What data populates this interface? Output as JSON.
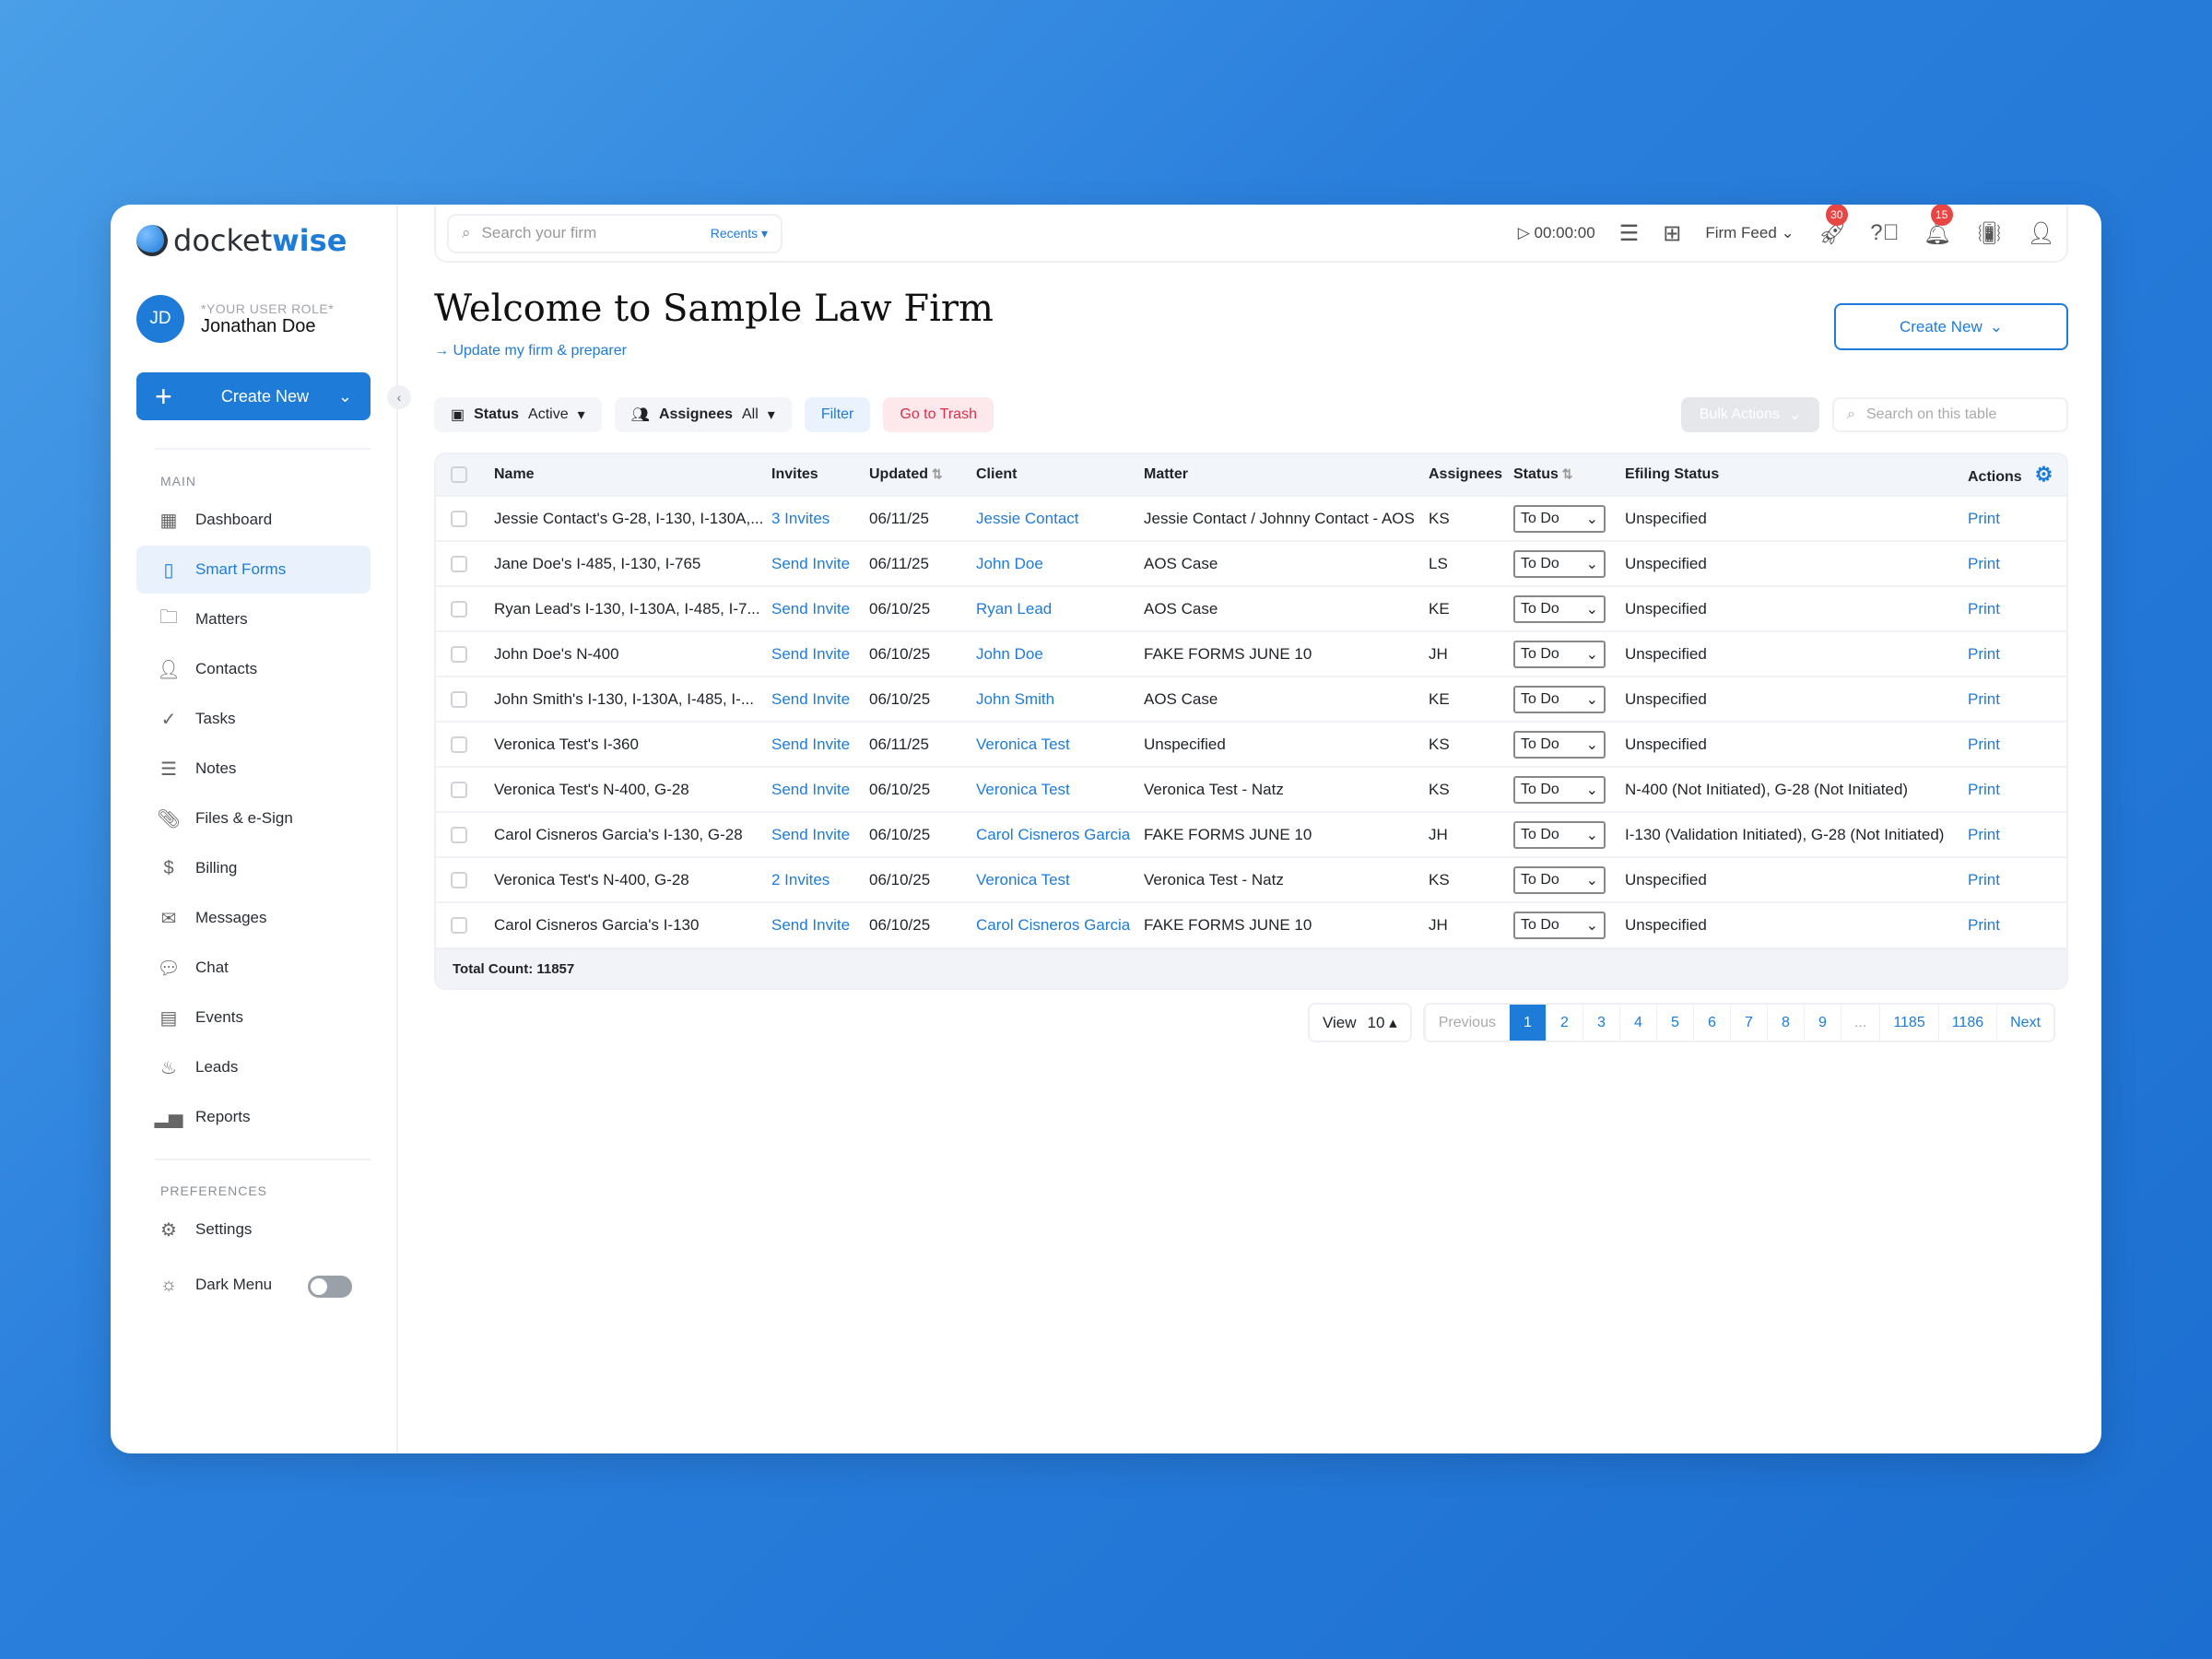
{
  "brand": {
    "logo_a": "docket",
    "logo_b": "wise",
    "accent": "#1e7bd8"
  },
  "user": {
    "initials": "JD",
    "role": "*YOUR USER ROLE*",
    "name": "Jonathan Doe"
  },
  "sidebar": {
    "create_label": "Create New",
    "main_label": "MAIN",
    "prefs_label": "PREFERENCES",
    "items": [
      {
        "label": "Dashboard",
        "icon": "grid-icon"
      },
      {
        "label": "Smart Forms",
        "icon": "form-icon",
        "active": true
      },
      {
        "label": "Matters",
        "icon": "folder-icon"
      },
      {
        "label": "Contacts",
        "icon": "user-icon"
      },
      {
        "label": "Tasks",
        "icon": "check-circle-icon"
      },
      {
        "label": "Notes",
        "icon": "notes-icon"
      },
      {
        "label": "Files & e-Sign",
        "icon": "paperclip-icon"
      },
      {
        "label": "Billing",
        "icon": "dollar-icon"
      },
      {
        "label": "Messages",
        "icon": "envelope-icon"
      },
      {
        "label": "Chat",
        "icon": "chat-icon"
      },
      {
        "label": "Events",
        "icon": "calendar-icon"
      },
      {
        "label": "Leads",
        "icon": "flame-icon"
      },
      {
        "label": "Reports",
        "icon": "bar-chart-icon"
      }
    ],
    "settings": "Settings",
    "dark_menu": "Dark Menu",
    "dark_menu_on": false
  },
  "topbar": {
    "search_placeholder": "Search your firm",
    "recents": "Recents ▾",
    "timer": "00:00:00",
    "firm_feed": "Firm Feed",
    "rocket_badge": "30",
    "bell_badge": "15"
  },
  "page": {
    "title": "Welcome to Sample Law Firm",
    "update_link": "→ Update my firm & preparer",
    "create_new": "Create New"
  },
  "filters": {
    "status_label": "Status",
    "status_value": "Active",
    "assignees_label": "Assignees",
    "assignees_value": "All",
    "filter": "Filter",
    "trash": "Go to Trash",
    "bulk": "Bulk Actions",
    "table_search_placeholder": "Search on this table"
  },
  "table": {
    "headers": [
      "Name",
      "Invites",
      "Updated",
      "Client",
      "Matter",
      "Assignees",
      "Status",
      "Efiling Status",
      "Actions"
    ],
    "rows": [
      [
        "Jessie Contact's G-28, I-130, I-130A,...",
        "3 Invites",
        "06/11/25",
        "Jessie Contact",
        "Jessie Contact / Johnny Contact - AOS",
        "KS",
        "To Do",
        "Unspecified",
        "Print"
      ],
      [
        "Jane Doe's I-485, I-130, I-765",
        "Send Invite",
        "06/11/25",
        "John Doe",
        "AOS Case",
        "LS",
        "To Do",
        "Unspecified",
        "Print"
      ],
      [
        "Ryan Lead's I-130, I-130A, I-485, I-7...",
        "Send Invite",
        "06/10/25",
        "Ryan Lead",
        "AOS Case",
        "KE",
        "To Do",
        "Unspecified",
        "Print"
      ],
      [
        "John Doe's N-400",
        "Send Invite",
        "06/10/25",
        "John Doe",
        "FAKE FORMS JUNE 10",
        "JH",
        "To Do",
        "Unspecified",
        "Print"
      ],
      [
        "John Smith's I-130, I-130A, I-485, I-...",
        "Send Invite",
        "06/10/25",
        "John Smith",
        "AOS Case",
        "KE",
        "To Do",
        "Unspecified",
        "Print"
      ],
      [
        "Veronica Test's I-360",
        "Send Invite",
        "06/11/25",
        "Veronica Test",
        "Unspecified",
        "KS",
        "To Do",
        "Unspecified",
        "Print"
      ],
      [
        "Veronica Test's N-400, G-28",
        "Send Invite",
        "06/10/25",
        "Veronica Test",
        "Veronica Test - Natz",
        "KS",
        "To Do",
        "N-400 (Not Initiated), G-28 (Not Initiated)",
        "Print"
      ],
      [
        "Carol Cisneros Garcia's I-130, G-28",
        "Send Invite",
        "06/10/25",
        "Carol Cisneros Garcia",
        "FAKE FORMS JUNE 10",
        "JH",
        "To Do",
        "I-130 (Validation Initiated), G-28 (Not Initiated)",
        "Print"
      ],
      [
        "Veronica Test's N-400, G-28",
        "2 Invites",
        "06/10/25",
        "Veronica Test",
        "Veronica Test - Natz",
        "KS",
        "To Do",
        "Unspecified",
        "Print"
      ],
      [
        "Carol Cisneros Garcia's I-130",
        "Send Invite",
        "06/10/25",
        "Carol Cisneros Garcia",
        "FAKE FORMS JUNE 10",
        "JH",
        "To Do",
        "Unspecified",
        "Print"
      ]
    ],
    "total": "Total Count: 11857"
  },
  "pagination": {
    "view_label": "View",
    "view_value": "10 ▴",
    "previous": "Previous",
    "pages": [
      "1",
      "2",
      "3",
      "4",
      "5",
      "6",
      "7",
      "8",
      "9",
      "...",
      "1185",
      "1186"
    ],
    "current": "1",
    "next": "Next"
  }
}
